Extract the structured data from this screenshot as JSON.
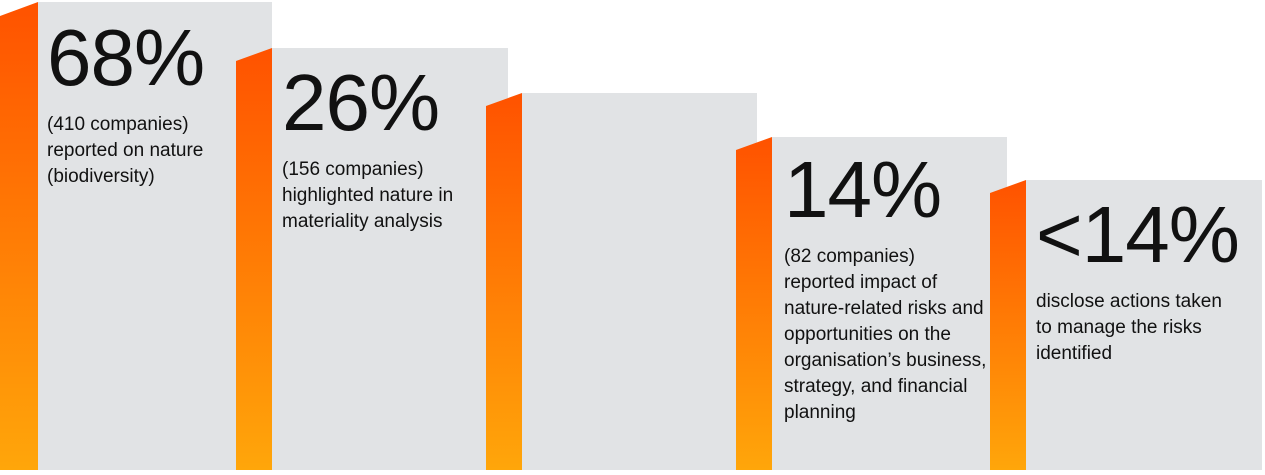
{
  "panels": [
    {
      "headline": "68%",
      "text": "(410 companies) reported on nature (biodiversity)"
    },
    {
      "headline": "26%",
      "text": "(156 companies) highlighted nature in materiality analysis"
    },
    {
      "headline": "14%",
      "text": "(82 companies) reported impact of nature-related risks and opportunities on the organisation’s business, strategy, and financial planning"
    },
    {
      "headline": "<14%",
      "text": "disclose actions taken to manage the risks identified"
    }
  ]
}
